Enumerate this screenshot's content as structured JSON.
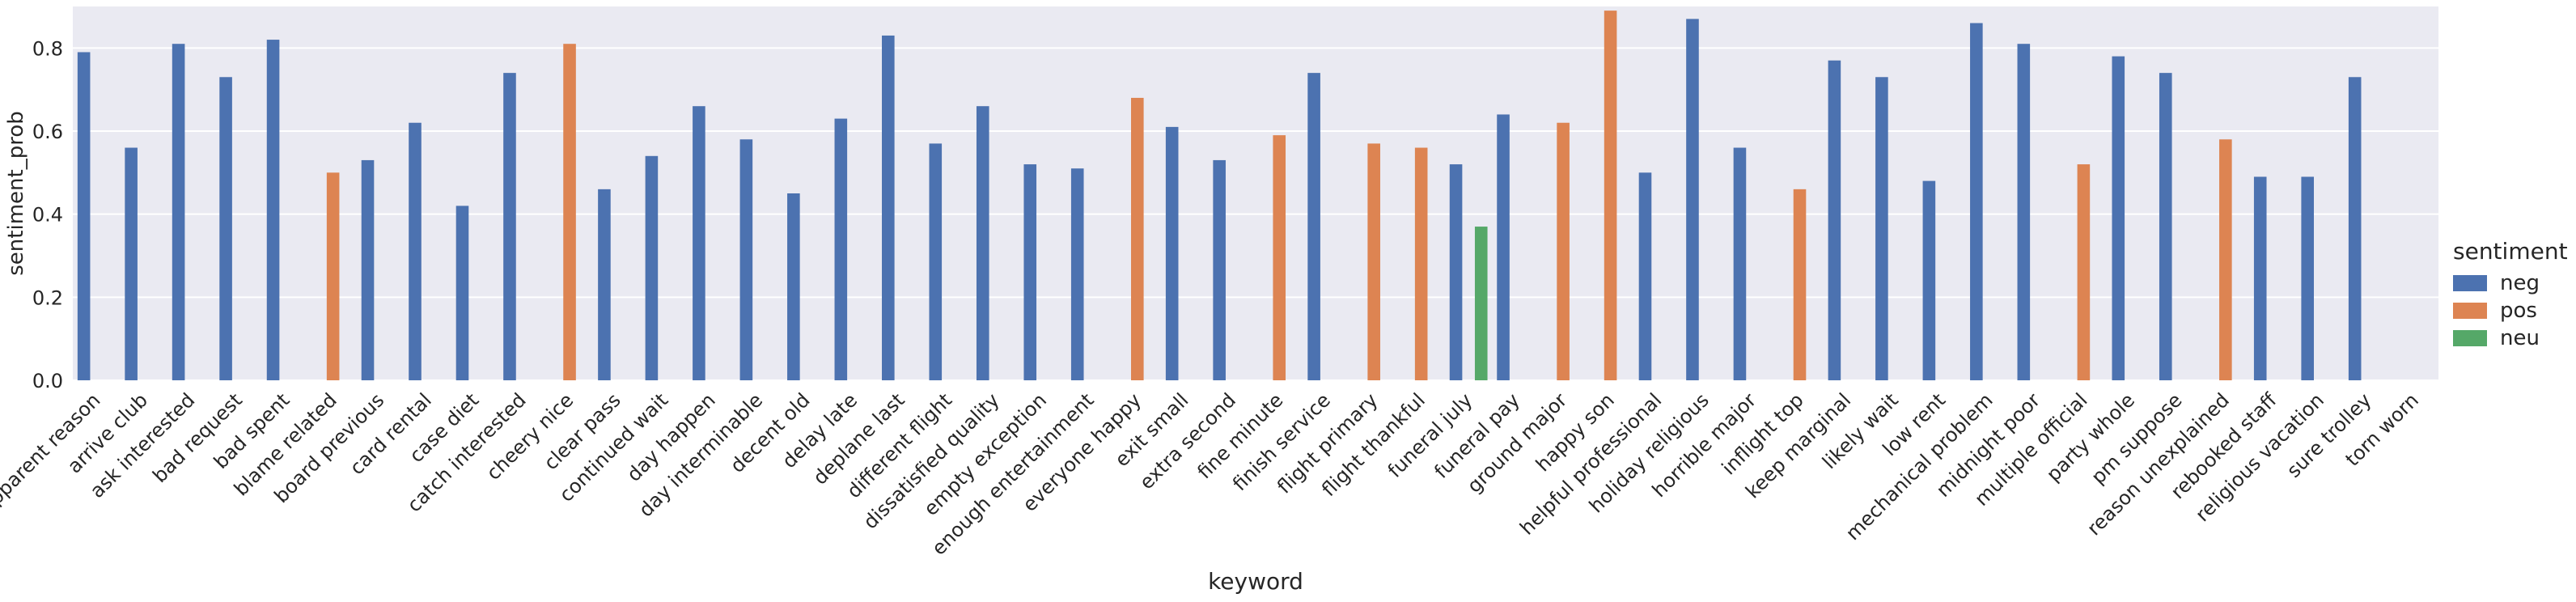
{
  "chart_data": {
    "type": "bar",
    "xlabel": "keyword",
    "ylabel": "sentiment_prob",
    "ylim": [
      0,
      0.9
    ],
    "yticks": [
      0.0,
      0.2,
      0.4,
      0.6,
      0.8
    ],
    "ytick_labels": [
      "0.0",
      "0.2",
      "0.4",
      "0.6",
      "0.8"
    ],
    "grid": true,
    "legend": {
      "title": "sentiment",
      "placement": "right"
    },
    "series": [
      {
        "name": "neg",
        "color": "#4c72b0"
      },
      {
        "name": "pos",
        "color": "#dd8452"
      },
      {
        "name": "neu",
        "color": "#55a868"
      }
    ],
    "categories": [
      "apparent reason",
      "arrive club",
      "ask interested",
      "bad request",
      "bad spent",
      "blame related",
      "board previous",
      "card rental",
      "case diet",
      "catch interested",
      "cheery nice",
      "clear pass",
      "continued wait",
      "day happen",
      "day interminable",
      "decent old",
      "delay late",
      "deplane last",
      "different flight",
      "dissatisfied quality",
      "empty exception",
      "enough entertainment",
      "everyone happy",
      "exit small",
      "extra second",
      "fine minute",
      "finish service",
      "flight primary",
      "flight thankful",
      "funeral july",
      "funeral pay",
      "ground major",
      "happy son",
      "helpful professional",
      "holiday religious",
      "horrible major",
      "inflight top",
      "keep marginal",
      "likely wait",
      "low rent",
      "mechanical problem",
      "midnight poor",
      "multiple official",
      "party whole",
      "pm suppose",
      "reason unexplained",
      "rebooked staff",
      "religious vacation",
      "sure trolley",
      "torn worn"
    ],
    "points": [
      {
        "category": "apparent reason",
        "sentiment": "neg",
        "value": 0.79
      },
      {
        "category": "arrive club",
        "sentiment": "neg",
        "value": 0.56
      },
      {
        "category": "ask interested",
        "sentiment": "neg",
        "value": 0.81
      },
      {
        "category": "bad request",
        "sentiment": "neg",
        "value": 0.73
      },
      {
        "category": "bad spent",
        "sentiment": "neg",
        "value": 0.82
      },
      {
        "category": "blame related",
        "sentiment": "pos",
        "value": 0.5
      },
      {
        "category": "board previous",
        "sentiment": "neg",
        "value": 0.53
      },
      {
        "category": "card rental",
        "sentiment": "neg",
        "value": 0.62
      },
      {
        "category": "case diet",
        "sentiment": "neg",
        "value": 0.42
      },
      {
        "category": "catch interested",
        "sentiment": "neg",
        "value": 0.74
      },
      {
        "category": "cheery nice",
        "sentiment": "pos",
        "value": 0.81
      },
      {
        "category": "clear pass",
        "sentiment": "neg",
        "value": 0.46
      },
      {
        "category": "continued wait",
        "sentiment": "neg",
        "value": 0.54
      },
      {
        "category": "day happen",
        "sentiment": "neg",
        "value": 0.66
      },
      {
        "category": "day interminable",
        "sentiment": "neg",
        "value": 0.58
      },
      {
        "category": "decent old",
        "sentiment": "neg",
        "value": 0.45
      },
      {
        "category": "delay late",
        "sentiment": "neg",
        "value": 0.63
      },
      {
        "category": "deplane last",
        "sentiment": "neg",
        "value": 0.83
      },
      {
        "category": "different flight",
        "sentiment": "neg",
        "value": 0.57
      },
      {
        "category": "dissatisfied quality",
        "sentiment": "neg",
        "value": 0.66
      },
      {
        "category": "empty exception",
        "sentiment": "neg",
        "value": 0.52
      },
      {
        "category": "enough entertainment",
        "sentiment": "neg",
        "value": 0.51
      },
      {
        "category": "everyone happy",
        "sentiment": "pos",
        "value": 0.68
      },
      {
        "category": "exit small",
        "sentiment": "neg",
        "value": 0.61
      },
      {
        "category": "extra second",
        "sentiment": "neg",
        "value": 0.53
      },
      {
        "category": "fine minute",
        "sentiment": "pos",
        "value": 0.59
      },
      {
        "category": "finish service",
        "sentiment": "neg",
        "value": 0.74
      },
      {
        "category": "flight primary",
        "sentiment": "pos",
        "value": 0.57
      },
      {
        "category": "flight thankful",
        "sentiment": "pos",
        "value": 0.56
      },
      {
        "category": "funeral july",
        "sentiment": "neu",
        "value": 0.37
      },
      {
        "category": "funeral july",
        "sentiment": "neg",
        "value": 0.52
      },
      {
        "category": "funeral pay",
        "sentiment": "neg",
        "value": 0.64
      },
      {
        "category": "ground major",
        "sentiment": "pos",
        "value": 0.62
      },
      {
        "category": "happy son",
        "sentiment": "pos",
        "value": 0.89
      },
      {
        "category": "helpful professional",
        "sentiment": "neg",
        "value": 0.5
      },
      {
        "category": "holiday religious",
        "sentiment": "neg",
        "value": 0.87
      },
      {
        "category": "horrible major",
        "sentiment": "neg",
        "value": 0.56
      },
      {
        "category": "inflight top",
        "sentiment": "pos",
        "value": 0.46
      },
      {
        "category": "keep marginal",
        "sentiment": "neg",
        "value": 0.77
      },
      {
        "category": "likely wait",
        "sentiment": "neg",
        "value": 0.73
      },
      {
        "category": "low rent",
        "sentiment": "neg",
        "value": 0.48
      },
      {
        "category": "mechanical problem",
        "sentiment": "neg",
        "value": 0.86
      },
      {
        "category": "midnight poor",
        "sentiment": "neg",
        "value": 0.81
      },
      {
        "category": "multiple official",
        "sentiment": "pos",
        "value": 0.52
      },
      {
        "category": "party whole",
        "sentiment": "neg",
        "value": 0.78
      },
      {
        "category": "pm suppose",
        "sentiment": "neg",
        "value": 0.74
      },
      {
        "category": "reason unexplained",
        "sentiment": "pos",
        "value": 0.58
      },
      {
        "category": "rebooked staff",
        "sentiment": "neg",
        "value": 0.49
      },
      {
        "category": "religious vacation",
        "sentiment": "neg",
        "value": 0.49
      },
      {
        "category": "sure trolley",
        "sentiment": "neg",
        "value": 0.73
      }
    ]
  }
}
